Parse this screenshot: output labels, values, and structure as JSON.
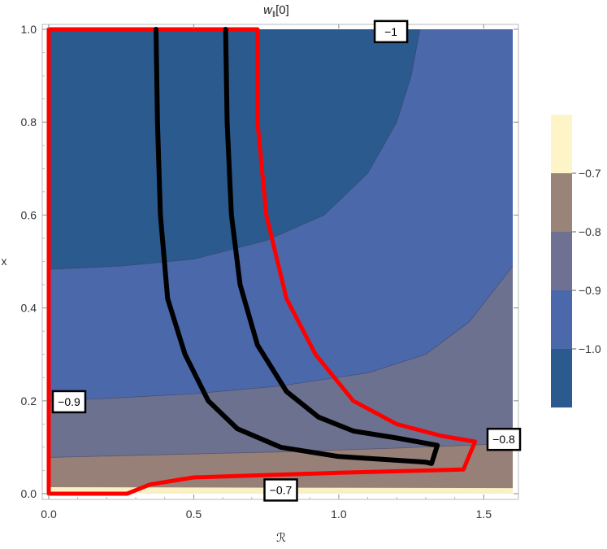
{
  "chart_data": {
    "type": "contour",
    "title": "w‖[0]",
    "title_main": "w",
    "title_sub": "‖",
    "title_tail": "[0]",
    "xlabel": "ℛ",
    "ylabel": "x",
    "xlim": [
      0,
      1.6
    ],
    "ylim": [
      0,
      1.0
    ],
    "x_ticks": [
      0.0,
      0.5,
      1.0,
      1.5
    ],
    "x_tick_labels": [
      "0.0",
      "0.5",
      "1.0",
      "1.5"
    ],
    "y_ticks": [
      0.0,
      0.2,
      0.4,
      0.6,
      0.8,
      1.0
    ],
    "y_tick_labels": [
      "0.0",
      "0.2",
      "0.4",
      "0.6",
      "0.8",
      "1.0"
    ],
    "contour_levels": [
      {
        "level": -1.0,
        "label": "−1",
        "label_x": 1.18,
        "label_y": 0.995
      },
      {
        "level": -0.9,
        "label": "−0.9",
        "label_x": 0.07,
        "label_y": 0.198
      },
      {
        "level": -0.8,
        "label": "−0.8",
        "label_x": 1.59,
        "label_y": 0.117
      },
      {
        "level": -0.7,
        "label": "−0.7",
        "label_x": 0.8,
        "label_y": 0.008
      }
    ],
    "region_colors": {
      "below_-1.0": "#2b5a8e",
      "-1.0_to_-0.9": "#4b68aa",
      "-0.9_to_-0.8": "#6c7190",
      "-0.8_to_-0.7": "#978077",
      "above_-0.7": "#f9f0c4"
    },
    "legend": {
      "position": "right",
      "bands": [
        {
          "color": "#fdf4c8",
          "label": ""
        },
        {
          "color": "#9a8378",
          "label": "−0.7"
        },
        {
          "color": "#6e7192",
          "label": "−0.8"
        },
        {
          "color": "#4b68aa",
          "label": "−0.9"
        },
        {
          "color": "#2b5a8e",
          "label": "−1.0"
        }
      ]
    },
    "series": [
      {
        "color": "#ff0000",
        "points": [
          [
            0.0,
            1.0
          ],
          [
            0.72,
            1.0
          ],
          [
            0.72,
            0.8
          ],
          [
            0.75,
            0.6
          ],
          [
            0.82,
            0.42
          ],
          [
            0.92,
            0.3
          ],
          [
            1.05,
            0.2
          ],
          [
            1.2,
            0.15
          ],
          [
            1.35,
            0.125
          ],
          [
            1.47,
            0.112
          ],
          [
            1.43,
            0.052
          ],
          [
            1.0,
            0.045
          ],
          [
            0.5,
            0.035
          ],
          [
            0.35,
            0.02
          ],
          [
            0.27,
            0.0
          ],
          [
            0.0,
            0.0
          ],
          [
            0.0,
            1.0
          ]
        ]
      },
      {
        "color": "#000000",
        "points": [
          [
            0.37,
            1.0
          ],
          [
            0.375,
            0.8
          ],
          [
            0.385,
            0.6
          ],
          [
            0.41,
            0.42
          ],
          [
            0.47,
            0.3
          ],
          [
            0.55,
            0.2
          ],
          [
            0.65,
            0.14
          ],
          [
            0.8,
            0.1
          ],
          [
            1.0,
            0.08
          ],
          [
            1.3,
            0.068
          ],
          [
            1.32,
            0.065
          ],
          [
            1.34,
            0.104
          ],
          [
            1.2,
            0.12
          ],
          [
            1.05,
            0.135
          ],
          [
            0.93,
            0.165
          ],
          [
            0.82,
            0.22
          ],
          [
            0.72,
            0.32
          ],
          [
            0.66,
            0.45
          ],
          [
            0.63,
            0.6
          ],
          [
            0.615,
            0.8
          ],
          [
            0.61,
            1.0
          ]
        ]
      }
    ],
    "grid": false
  }
}
